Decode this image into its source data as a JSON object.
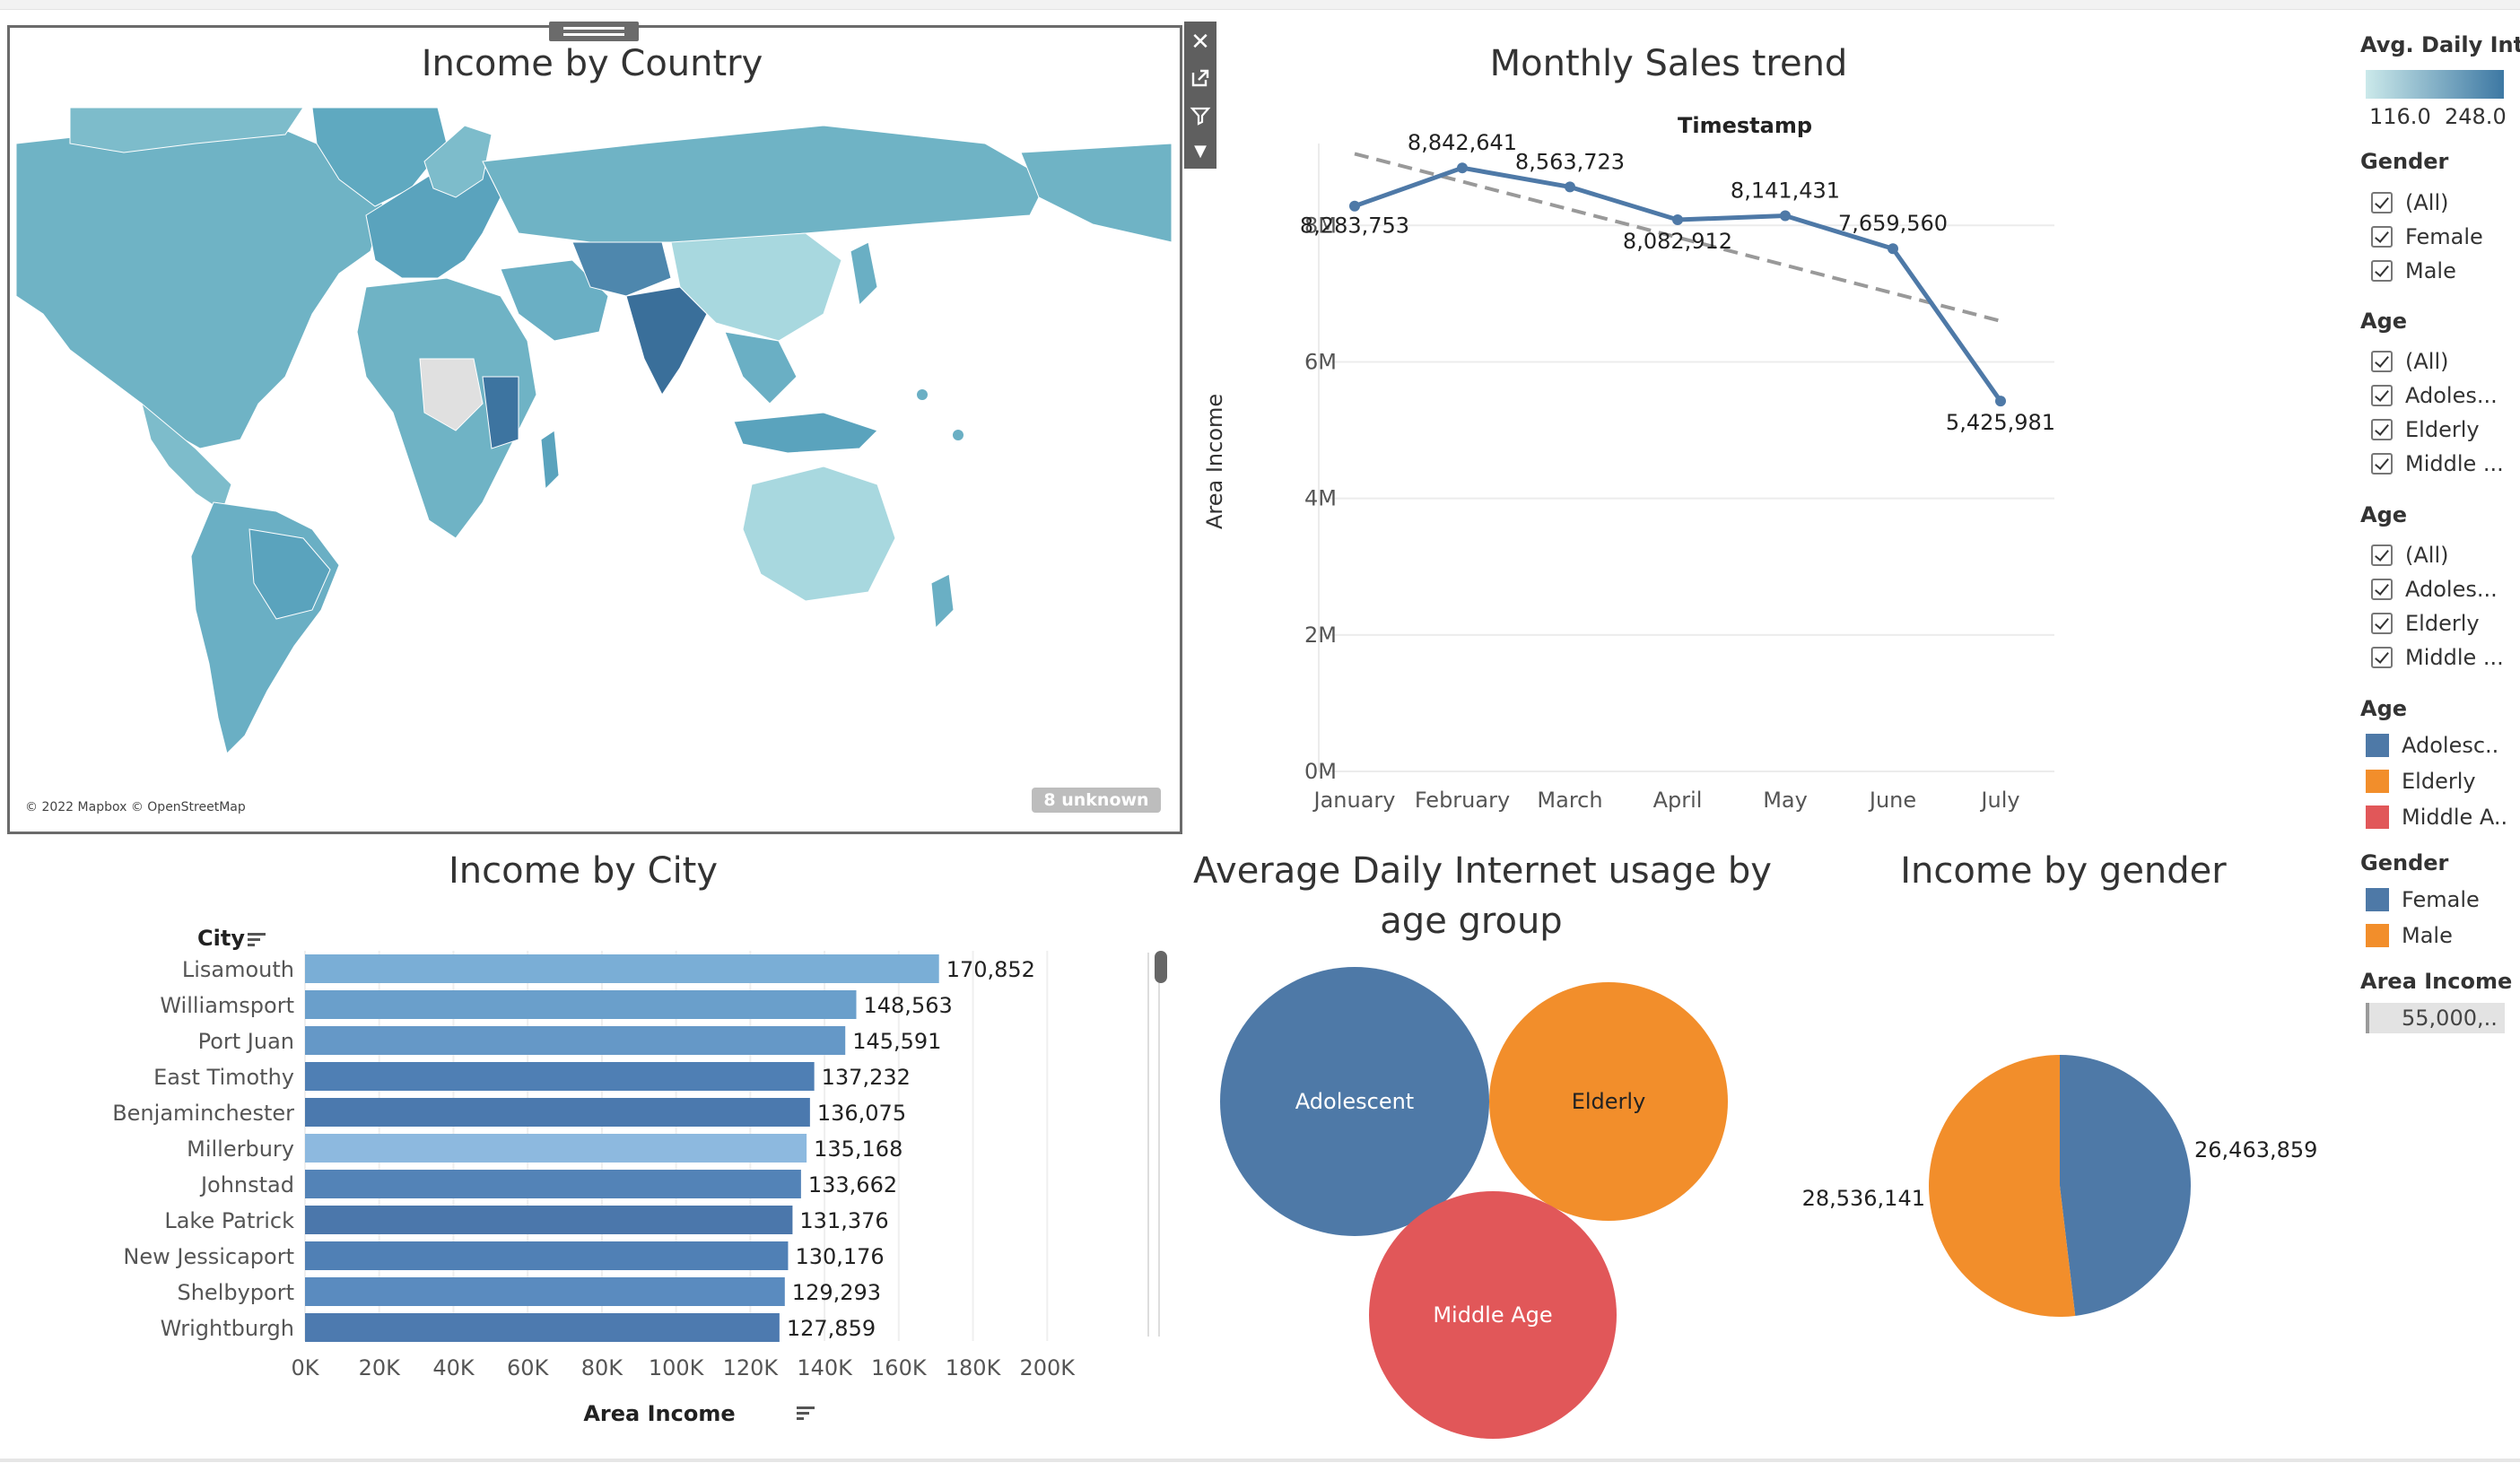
{
  "map": {
    "title": "Income by Country",
    "attribution": "© 2022 Mapbox © OpenStreetMap",
    "unknown_badge": "8 unknown",
    "toolbar_icons": [
      "close-icon",
      "popout-icon",
      "filter-icon",
      "menu-caret-icon"
    ],
    "colors": {
      "light": "#a8d8df",
      "mid": "#6fb3c5",
      "dark": "#3a6f9a",
      "nodata": "#e0e0e0"
    }
  },
  "line": {
    "title": "Monthly Sales trend",
    "header": "Timestamp",
    "ylabel": "Area Income",
    "yticks": [
      "8M",
      "6M",
      "4M",
      "2M",
      "0M"
    ]
  },
  "bars": {
    "title": "Income by City",
    "column_header": "City",
    "xlabel": "Area Income",
    "xticks": [
      "0K",
      "20K",
      "40K",
      "60K",
      "80K",
      "100K",
      "120K",
      "140K",
      "160K",
      "180K",
      "200K"
    ]
  },
  "bubbles": {
    "title_line1": "Average Daily Internet usage by",
    "title_line2": "age group"
  },
  "pie": {
    "title": "Income by gender"
  },
  "legend": {
    "avg_title": "Avg. Daily Int..",
    "avg_min": "116.0",
    "avg_max": "248.0",
    "gender_filter": {
      "title": "Gender",
      "items": [
        "(All)",
        "Female",
        "Male"
      ]
    },
    "age_filter_1": {
      "title": "Age",
      "items": [
        "(All)",
        "Adoles...",
        "Elderly",
        "Middle ..."
      ]
    },
    "age_filter_2": {
      "title": "Age",
      "items": [
        "(All)",
        "Adoles...",
        "Elderly",
        "Middle ..."
      ]
    },
    "age_color": {
      "title": "Age",
      "items": [
        {
          "label": "Adolesc..",
          "color": "#4e79a7"
        },
        {
          "label": "Elderly",
          "color": "#f28e2b"
        },
        {
          "label": "Middle A..",
          "color": "#e15759"
        }
      ]
    },
    "gender_color": {
      "title": "Gender",
      "items": [
        {
          "label": "Female",
          "color": "#4e79a7"
        },
        {
          "label": "Male",
          "color": "#f28e2b"
        }
      ]
    },
    "area_income": {
      "title": "Area Income",
      "value": "55,000,.."
    }
  },
  "chart_data": [
    {
      "type": "line",
      "title": "Monthly Sales trend",
      "xlabel": "Timestamp",
      "ylabel": "Area Income",
      "categories": [
        "January",
        "February",
        "March",
        "April",
        "May",
        "June",
        "July"
      ],
      "series": [
        {
          "values": [
            8283753,
            8842641,
            8563723,
            8082912,
            8141431,
            7659560,
            5425981
          ]
        }
      ],
      "value_labels": [
        "8,283,753",
        "8,842,641",
        "8,563,723",
        "8,082,912",
        "8,141,431",
        "7,659,560",
        "5,425,981"
      ],
      "trend_line": {
        "start": 9050000,
        "end": 6600000
      },
      "ylim": [
        0,
        9200000
      ],
      "color": "#4e79a7"
    },
    {
      "type": "bar",
      "title": "Income by City",
      "xlabel": "Area Income",
      "ylabel": "City",
      "categories": [
        "Lisamouth",
        "Williamsport",
        "Port Juan",
        "East Timothy",
        "Benjaminchester",
        "Millerbury",
        "Johnstad",
        "Lake Patrick",
        "New Jessicaport",
        "Shelbyport",
        "Wrightburgh"
      ],
      "values": [
        170852,
        148563,
        145591,
        137232,
        136075,
        135168,
        133662,
        131376,
        130176,
        129293,
        127859
      ],
      "value_labels": [
        "170,852",
        "148,563",
        "145,591",
        "137,232",
        "136,075",
        "135,168",
        "133,662",
        "131,376",
        "130,176",
        "129,293",
        "127,859"
      ],
      "bar_colors": [
        "#7aaed6",
        "#6a9fcb",
        "#6598c7",
        "#4f7fb4",
        "#4b79ae",
        "#8db9df",
        "#5383b7",
        "#4b77ab",
        "#5080b5",
        "#5a8bbf",
        "#4d7aaf"
      ],
      "xlim": [
        0,
        200000
      ]
    },
    {
      "type": "bubble",
      "title": "Average Daily Internet usage by age group",
      "categories": [
        "Adolescent",
        "Elderly",
        "Middle Age"
      ],
      "colors": [
        "#4e79a7",
        "#f28e2b",
        "#e15759"
      ]
    },
    {
      "type": "pie",
      "title": "Income by gender",
      "categories": [
        "Female",
        "Male"
      ],
      "values": [
        26463859,
        28536141
      ],
      "value_labels": [
        "26,463,859",
        "28,536,141"
      ],
      "colors": [
        "#4e79a7",
        "#f28e2b"
      ]
    }
  ]
}
